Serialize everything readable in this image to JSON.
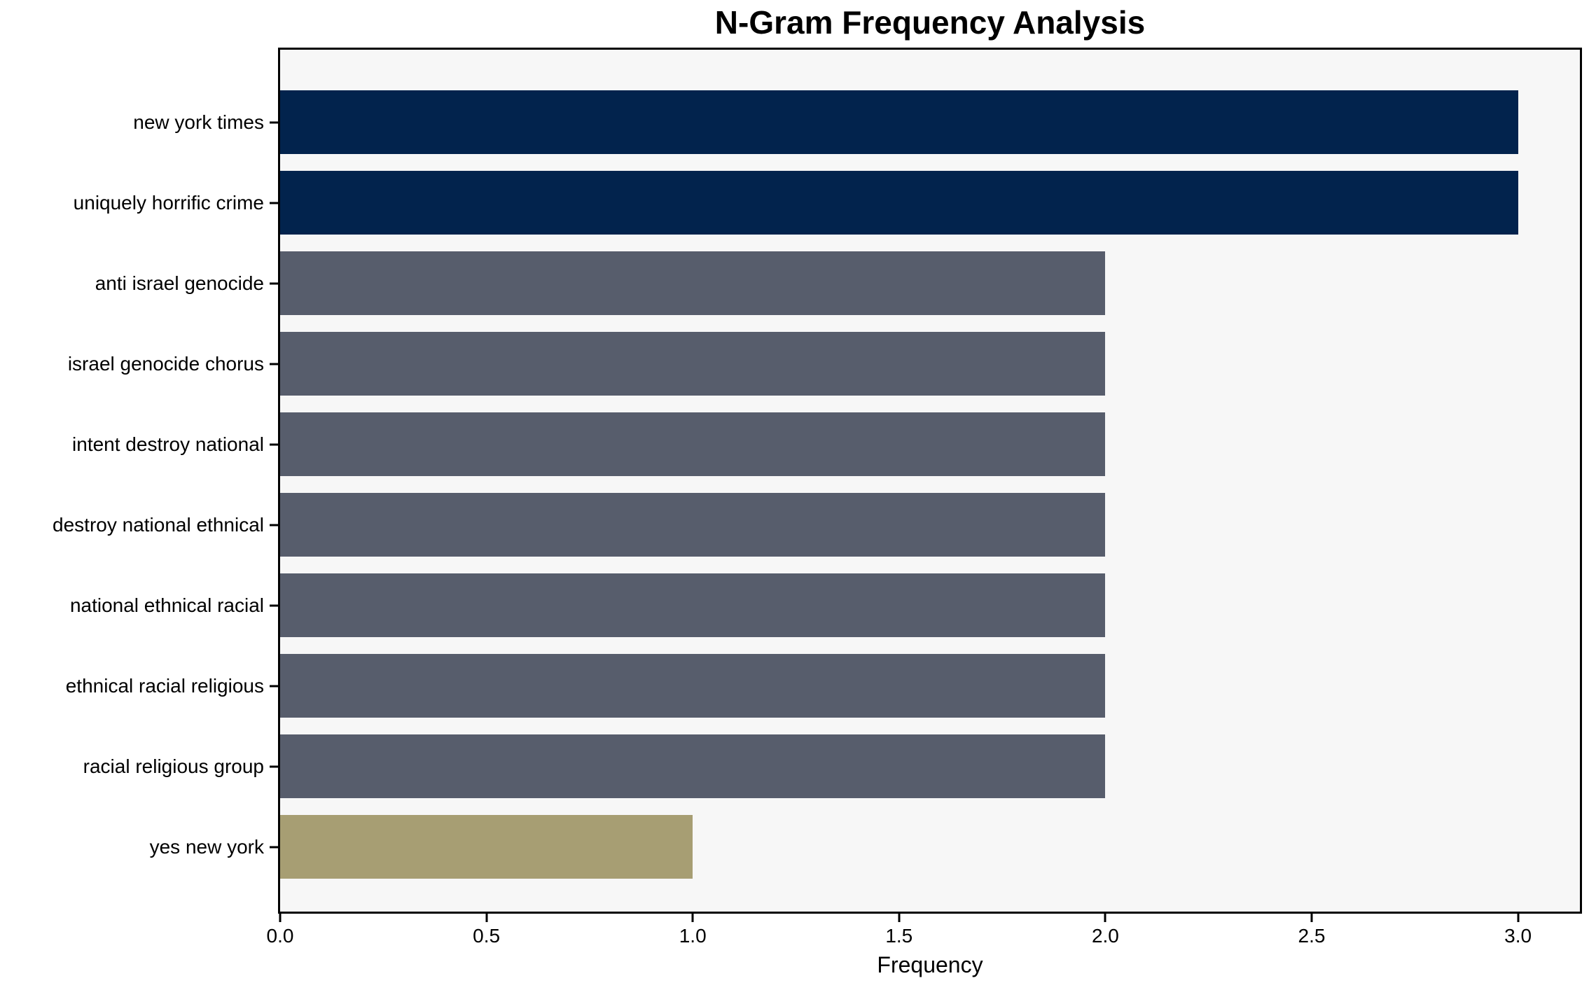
{
  "chart_data": {
    "type": "bar",
    "orientation": "horizontal",
    "title": "N-Gram Frequency Analysis",
    "xlabel": "Frequency",
    "ylabel": "",
    "categories": [
      "new york times",
      "uniquely horrific crime",
      "anti israel genocide",
      "israel genocide chorus",
      "intent destroy national",
      "destroy national ethnical",
      "national ethnical racial",
      "ethnical racial religious",
      "racial religious group",
      "yes new york"
    ],
    "values": [
      3,
      3,
      2,
      2,
      2,
      2,
      2,
      2,
      2,
      1
    ],
    "bar_colors": [
      "#02234d",
      "#02234d",
      "#575d6c",
      "#575d6c",
      "#575d6c",
      "#575d6c",
      "#575d6c",
      "#575d6c",
      "#575d6c",
      "#a79e73"
    ],
    "xticks": [
      0.0,
      0.5,
      1.0,
      1.5,
      2.0,
      2.5,
      3.0
    ],
    "xtick_labels": [
      "0.0",
      "0.5",
      "1.0",
      "1.5",
      "2.0",
      "2.5",
      "3.0"
    ],
    "xlim": [
      0,
      3.15
    ],
    "grid": false,
    "legend": "none",
    "colors": {
      "value_3_bar": "#02234d",
      "value_2_bar": "#575d6c",
      "value_1_bar": "#a79e73",
      "plot_background": "#f7f7f7",
      "figure_background": "#ffffff",
      "axis_border": "#000000",
      "text": "#000000"
    }
  }
}
